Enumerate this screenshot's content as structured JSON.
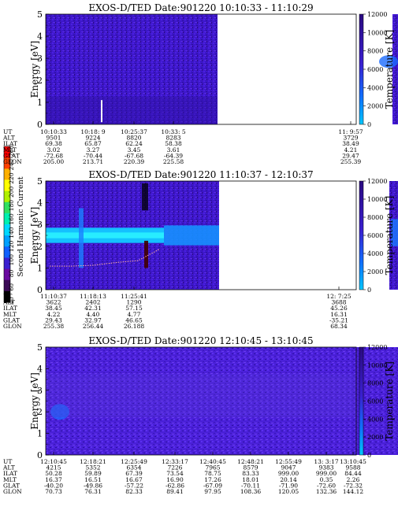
{
  "colorbar": {
    "label": "Second Harmonic Current",
    "ticks": [
      "40",
      "60",
      "80",
      "100",
      "120",
      "140",
      "160",
      "180",
      "200",
      "220",
      "240",
      "260"
    ],
    "colors": [
      "#000000",
      "#3a0a55",
      "#6a0aa0",
      "#3a1fd0",
      "#1060ff",
      "#00a0ff",
      "#00d8ff",
      "#00f0b0",
      "#30e060",
      "#b0f000",
      "#ffff00",
      "#ffb000",
      "#ff4000",
      "#ff0000"
    ]
  },
  "panels": [
    {
      "title": "EXOS-D/TED   Date:901220  10:10:33 - 11:10:29",
      "ylabel": "Energy [eV]",
      "y2label": "Temperature [K]",
      "yticks": [
        "0",
        "1",
        "2",
        "3",
        "4",
        "5"
      ],
      "y2ticks": [
        "0",
        "2000",
        "4000",
        "6000",
        "8000",
        "10000",
        "12000"
      ],
      "ephem_rows": [
        "UT",
        "ALT",
        "ILAT",
        "MLT",
        "GLAT",
        "GLON"
      ],
      "ephem_cols": [
        [
          "10:10:33",
          "9501",
          "69.38",
          "3.02",
          "-72.68",
          "205.00"
        ],
        [
          "10:18: 9",
          "9224",
          "65.87",
          "3.27",
          "-70.44",
          "213.71"
        ],
        [
          "10:25:37",
          "8820",
          "62.24",
          "3.45",
          "-67.68",
          "220.39"
        ],
        [
          "10:33: 5",
          "8283",
          "58.38",
          "3.61",
          "-64.39",
          "225.58"
        ],
        [
          "11: 9:57",
          "3729",
          "38.49",
          "4.21",
          "29.47",
          "255.39"
        ]
      ]
    },
    {
      "title": "EXOS-D/TED   Date:901220  11:10:37 - 12:10:37",
      "ylabel": "Energy [eV]",
      "y2label": "Temperature [K]",
      "yticks": [
        "0",
        "1",
        "2",
        "3",
        "4",
        "5"
      ],
      "y2ticks": [
        "0",
        "2000",
        "4000",
        "6000",
        "8000",
        "10000",
        "12000"
      ],
      "ephem_rows": [
        "UT",
        "ALT",
        "ILAT",
        "MLT",
        "GLAT",
        "GLON"
      ],
      "ephem_cols": [
        [
          "11:10:37",
          "3622",
          "38.45",
          "4.22",
          "29.43",
          "255.38"
        ],
        [
          "11:18:13",
          "2402",
          "42.31",
          "4.40",
          "32.97",
          "256.44"
        ],
        [
          "11:25:41",
          "1290",
          "57.15",
          "4.77",
          "46.65",
          "26.188"
        ],
        [
          "12: 7:25",
          "3688",
          "45.26",
          "16.31",
          "-35.21",
          "68.34"
        ]
      ]
    },
    {
      "title": "EXOS-D/TED   Date:901220  12:10:45 - 13:10:45",
      "ylabel": "Energy [eV]",
      "y2label": "Temperature [K]",
      "yticks": [
        "0",
        "1",
        "2",
        "3",
        "4",
        "5"
      ],
      "y2ticks": [
        "0",
        "2000",
        "4000",
        "6000",
        "8000",
        "10000",
        "12000"
      ],
      "ephem_rows": [
        "UT",
        "ALT",
        "ILAT",
        "MLT",
        "GLAT",
        "GLON"
      ],
      "ephem_cols": [
        [
          "12:10:45",
          "4215",
          "50.28",
          "16.37",
          "-40.20",
          "70.73"
        ],
        [
          "12:18:21",
          "5352",
          "59.89",
          "16.51",
          "-49.86",
          "76.31"
        ],
        [
          "12:25:49",
          "6354",
          "67.39",
          "16.67",
          "-57.22",
          "82.33"
        ],
        [
          "12:33:17",
          "7226",
          "73.54",
          "16.90",
          "-62.86",
          "89.41"
        ],
        [
          "12:40:45",
          "7965",
          "78.75",
          "17.26",
          "-67.09",
          "97.95"
        ],
        [
          "12:48:21",
          "8579",
          "83.33",
          "18.01",
          "-70.11",
          "108.36"
        ],
        [
          "12:55:49",
          "9047",
          "999.00",
          "20.14",
          "-71.90",
          "120.05"
        ],
        [
          "13: 3:17",
          "9383",
          "999.00",
          "0.35",
          "-72.60",
          "132.36"
        ],
        [
          "13:10:45",
          "9588",
          "84.44",
          "2.26",
          "-72.32",
          "144.12"
        ]
      ]
    }
  ],
  "chart_data": [
    {
      "type": "heatmap",
      "title": "EXOS-D/TED   Date:901220  10:10:33 - 11:10:29",
      "ylabel": "Energy [eV]",
      "y2label": "Temperature [K]",
      "ylim": [
        0,
        5
      ],
      "y2lim": [
        0,
        12000
      ],
      "data_coverage_ut": [
        [
          "10:10:33",
          "10:33:05"
        ],
        [
          "11:09:57",
          "11:10:29"
        ]
      ],
      "dominant_level_energy_ev": 0.8
    },
    {
      "type": "heatmap",
      "title": "EXOS-D/TED   Date:901220  11:10:37 - 12:10:37",
      "ylabel": "Energy [eV]",
      "y2label": "Temperature [K]",
      "ylim": [
        0,
        5
      ],
      "y2lim": [
        0,
        12000
      ],
      "data_coverage_ut": [
        [
          "11:10:37",
          "11:31:00"
        ],
        [
          "12:07:25",
          "12:10:37"
        ]
      ],
      "enhanced_band_energy_ev": [
        2.2,
        2.8
      ],
      "temperature_trace_k": [
        {
          "ut": "11:10:37",
          "k": 2600
        },
        {
          "ut": "11:14:00",
          "k": 2600
        },
        {
          "ut": "11:18:13",
          "k": 2700
        },
        {
          "ut": "11:22:00",
          "k": 3000
        },
        {
          "ut": "11:25:41",
          "k": 3200
        },
        {
          "ut": "11:28:00",
          "k": 4500
        }
      ]
    },
    {
      "type": "heatmap",
      "title": "EXOS-D/TED   Date:901220  12:10:45 - 13:10:45",
      "ylabel": "Energy [eV]",
      "y2label": "Temperature [K]",
      "ylim": [
        0,
        5
      ],
      "y2lim": [
        0,
        12000
      ],
      "data_coverage_ut": [
        [
          "12:10:45",
          "13:10:45"
        ]
      ],
      "dominant_level_energy_ev": 0.8
    }
  ]
}
